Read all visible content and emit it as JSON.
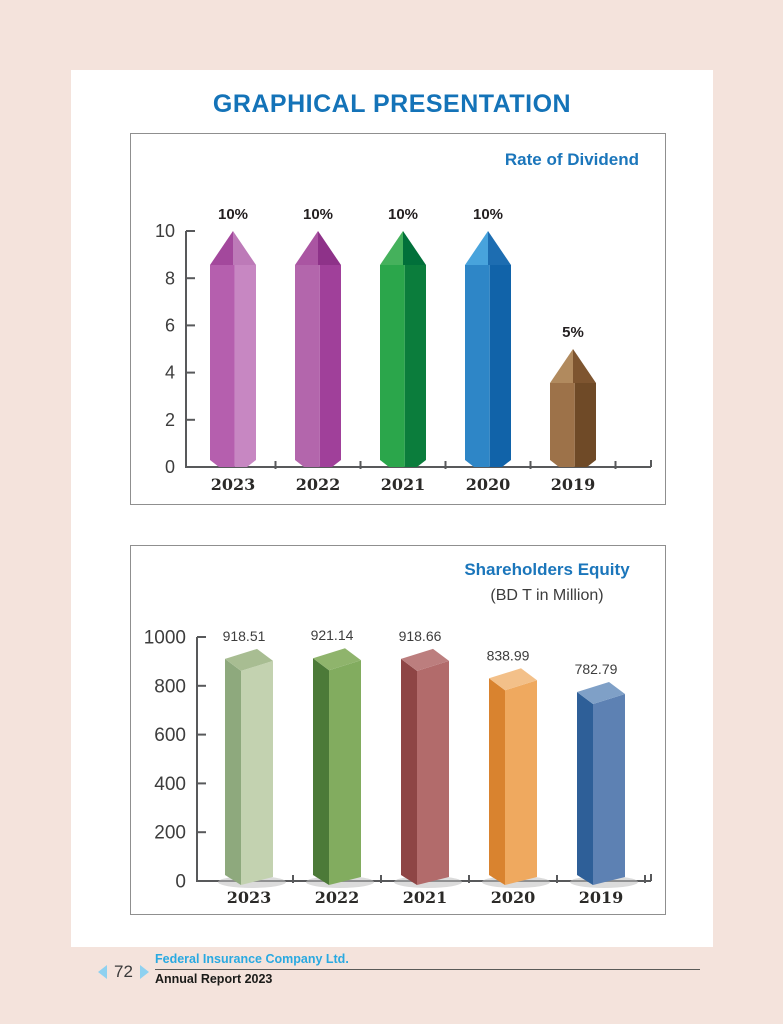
{
  "page_title": "GRAPHICAL PRESENTATION",
  "accent_colors": {
    "heading_blue": "#1473b8",
    "chart_title_blue": "#1b76bb",
    "footer_cyan": "#29a9e1",
    "footer_arrow_blue": "#8ed1f0",
    "page_background": "#f4e3dc",
    "axis_gray": "#58595b"
  },
  "footer": {
    "page_number": "72",
    "company_name": "Federal Insurance Company Ltd.",
    "report_name": "Annual Report 2023"
  },
  "chart_data": [
    {
      "type": "bar",
      "style": "pencil3d",
      "title": "Rate of Dividend",
      "categories": [
        "2023",
        "2022",
        "2021",
        "2020",
        "2019"
      ],
      "values": [
        10,
        10,
        10,
        10,
        5
      ],
      "value_labels": [
        "10%",
        "10%",
        "10%",
        "10%",
        "5%"
      ],
      "xlabel": "",
      "ylabel": "",
      "ylim": [
        0,
        10
      ],
      "yticks": [
        0,
        2,
        4,
        6,
        8,
        10
      ],
      "grid": false,
      "legend": null,
      "bar_colors": [
        {
          "body_left": "#b55fae",
          "body_right": "#c787c2",
          "tip_left": "#a3489c",
          "tip_right": "#bd7ab8"
        },
        {
          "body_left": "#b366ac",
          "body_right": "#a0409a",
          "tip_left": "#aa55a2",
          "tip_right": "#8e3289"
        },
        {
          "body_left": "#2ba64b",
          "body_right": "#0b7d3c",
          "tip_left": "#45b15c",
          "tip_right": "#01703a"
        },
        {
          "body_left": "#2e86c7",
          "body_right": "#1163a9",
          "tip_left": "#48a3dc",
          "tip_right": "#1d6db1"
        },
        {
          "body_left": "#9d7249",
          "body_right": "#6f4a27",
          "tip_left": "#b18a5e",
          "tip_right": "#7e5530"
        }
      ]
    },
    {
      "type": "bar",
      "style": "cuboid3d",
      "title": "Shareholders Equity",
      "subtitle": "(BD T in Million)",
      "categories": [
        "2023",
        "2022",
        "2021",
        "2020",
        "2019"
      ],
      "values": [
        918.51,
        921.14,
        918.66,
        838.99,
        782.79
      ],
      "value_labels": [
        "918.51",
        "921.14",
        "918.66",
        "838.99",
        "782.79"
      ],
      "xlabel": "",
      "ylabel": "",
      "ylim": [
        0,
        1000
      ],
      "yticks": [
        0,
        200,
        400,
        600,
        800,
        1000
      ],
      "grid": false,
      "legend": null,
      "bar_colors": [
        {
          "left": "#8ea97d",
          "right": "#c3d2b0",
          "top": "#a8bd92"
        },
        {
          "left": "#4c7a38",
          "right": "#82ac5f",
          "top": "#8fb46c"
        },
        {
          "left": "#8e4545",
          "right": "#b26b6b",
          "top": "#bc7e7e"
        },
        {
          "left": "#d9832f",
          "right": "#efa95f",
          "top": "#f3c089"
        },
        {
          "left": "#2e5f98",
          "right": "#5d81b3",
          "top": "#7fa0c7"
        }
      ]
    }
  ]
}
